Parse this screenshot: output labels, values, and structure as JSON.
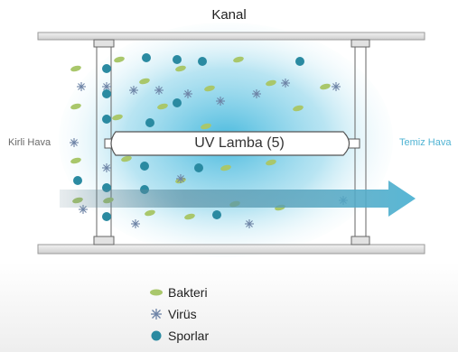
{
  "title": "Kanal",
  "lamp_label": "UV Lamba (5)",
  "dirty_air_label": "Kirli Hava",
  "clean_air_label": "Temiz Hava",
  "legend": [
    {
      "icon": "bacteria-icon",
      "label": "Bakteri",
      "color": "#a9c76b"
    },
    {
      "icon": "virus-icon",
      "label": "Virüs",
      "color": "#6d83a6"
    },
    {
      "icon": "spore-icon",
      "label": "Sporlar",
      "color": "#2a8aa1"
    }
  ],
  "colors": {
    "uv_glow": "#3fb6dc",
    "arrow": "#4fb3d3",
    "duct": "#d9d9d9"
  }
}
